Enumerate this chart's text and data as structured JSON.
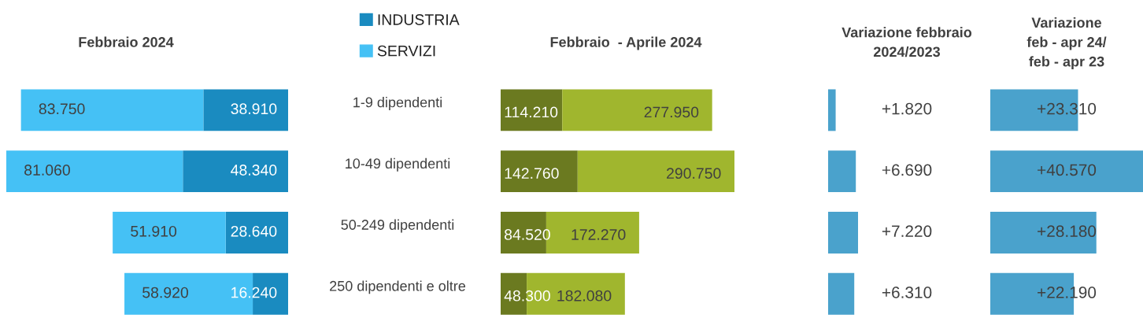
{
  "chart_data": [
    {
      "type": "bar",
      "orientation": "horizontal",
      "stacked": true,
      "title": "Febbraio 2024",
      "categories": [
        "1-9 dipendenti",
        "10-49 dipendenti",
        "50-249 dipendenti",
        "250 dipendenti e oltre"
      ],
      "legend": "top right",
      "series": [
        {
          "name": "INDUSTRIA",
          "color": "#1a8bc0",
          "values": [
            38910,
            48340,
            28640,
            16240
          ],
          "value_labels": [
            "38.910",
            "48.340",
            "28.640",
            "16.240"
          ]
        },
        {
          "name": "SERVIZI",
          "color": "#45c1f5",
          "values": [
            83750,
            81060,
            51910,
            58920
          ],
          "value_labels": [
            "83.750",
            "81.060",
            "51.910",
            "58.920"
          ]
        }
      ]
    },
    {
      "type": "bar",
      "orientation": "horizontal",
      "stacked": true,
      "title": "Febbraio  - Aprile 2024",
      "categories": [
        null,
        null,
        null,
        null
      ],
      "series": [
        {
          "color": "#6b7a20",
          "values": [
            114210,
            142760,
            84520,
            48300
          ],
          "value_labels": [
            "114.210",
            "142.760",
            "84.520",
            "48.300"
          ]
        },
        {
          "color": "#a0b62e",
          "values": [
            277950,
            290750,
            172270,
            182080
          ],
          "value_labels": [
            "277.950",
            "290.750",
            "172.270",
            "182.080"
          ]
        }
      ]
    },
    {
      "type": "bar",
      "orientation": "horizontal",
      "title": "Variazione febbraio\n2024/2023",
      "categories": [
        null,
        null,
        null,
        null
      ],
      "series": [
        {
          "color": "#4aa2cc",
          "values": [
            1820,
            6690,
            7220,
            6310
          ],
          "value_labels": [
            "+1.820",
            "+6.690",
            "+7.220",
            "+6.310"
          ]
        }
      ]
    },
    {
      "type": "bar",
      "orientation": "horizontal",
      "title": "Variazione\nfeb - apr 24/\nfeb - apr 23",
      "categories": [
        null,
        null,
        null,
        null
      ],
      "series": [
        {
          "color": "#4aa2cc",
          "values": [
            23310,
            40570,
            28180,
            22190
          ],
          "value_labels": [
            "+23.310",
            "+40.570",
            "+28.180",
            "+22.190"
          ]
        }
      ]
    }
  ]
}
